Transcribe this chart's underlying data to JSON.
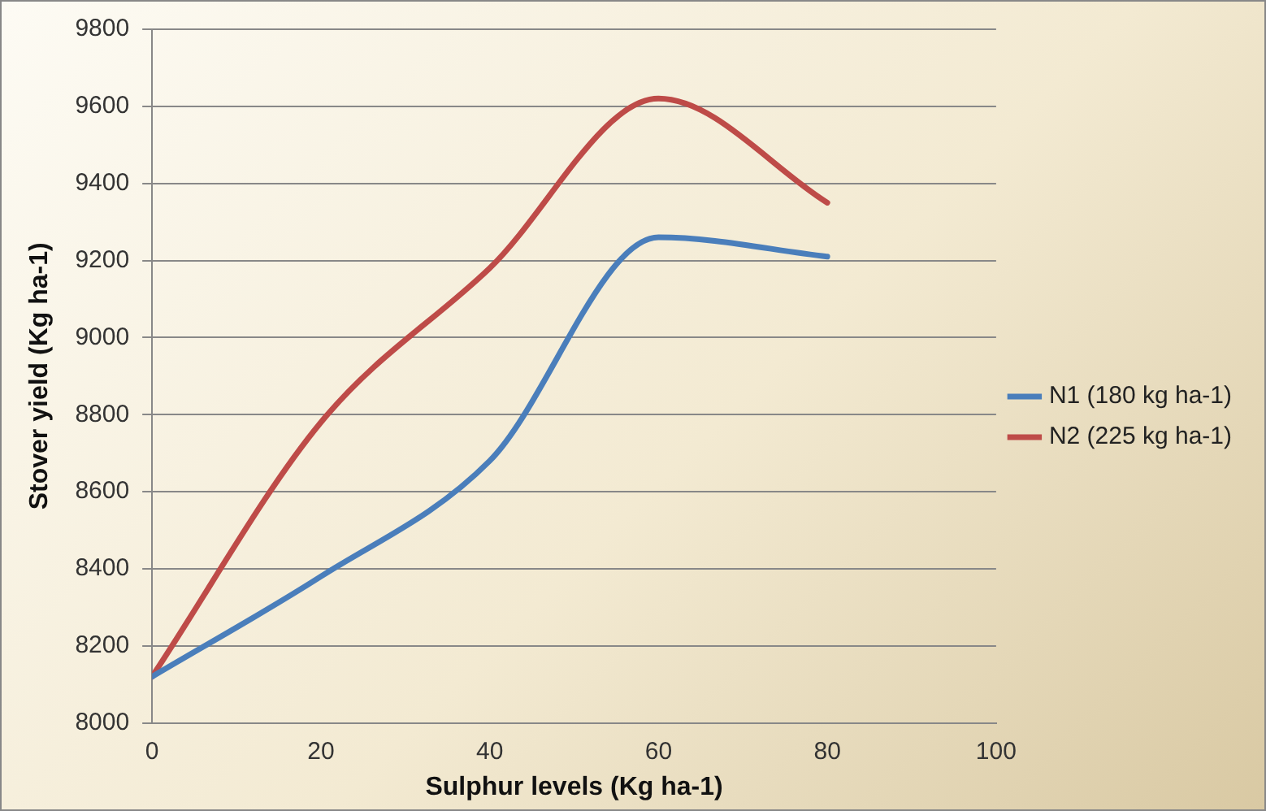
{
  "chart_data": {
    "type": "line",
    "xlabel": "Sulphur levels (Kg ha-1)",
    "ylabel": "Stover yield (Kg ha-1)",
    "x": [
      0,
      20,
      40,
      60,
      80
    ],
    "series": [
      {
        "name": "N1 (180 kg ha-1)",
        "color": "#4a7ebb",
        "values": [
          8120,
          8380,
          8680,
          9260,
          9210
        ]
      },
      {
        "name": "N2 (225 kg ha-1)",
        "color": "#be4b48",
        "values": [
          8120,
          8780,
          9180,
          9620,
          9350
        ]
      }
    ],
    "xlim": [
      0,
      100
    ],
    "xticks": [
      0,
      20,
      40,
      60,
      80,
      100
    ],
    "ylim": [
      8000,
      9800
    ],
    "yticks": [
      8000,
      8200,
      8400,
      8600,
      8800,
      9000,
      9200,
      9400,
      9600,
      9800
    ],
    "grid": "y",
    "legend": "right",
    "marker": "none",
    "line_style": "solid"
  }
}
